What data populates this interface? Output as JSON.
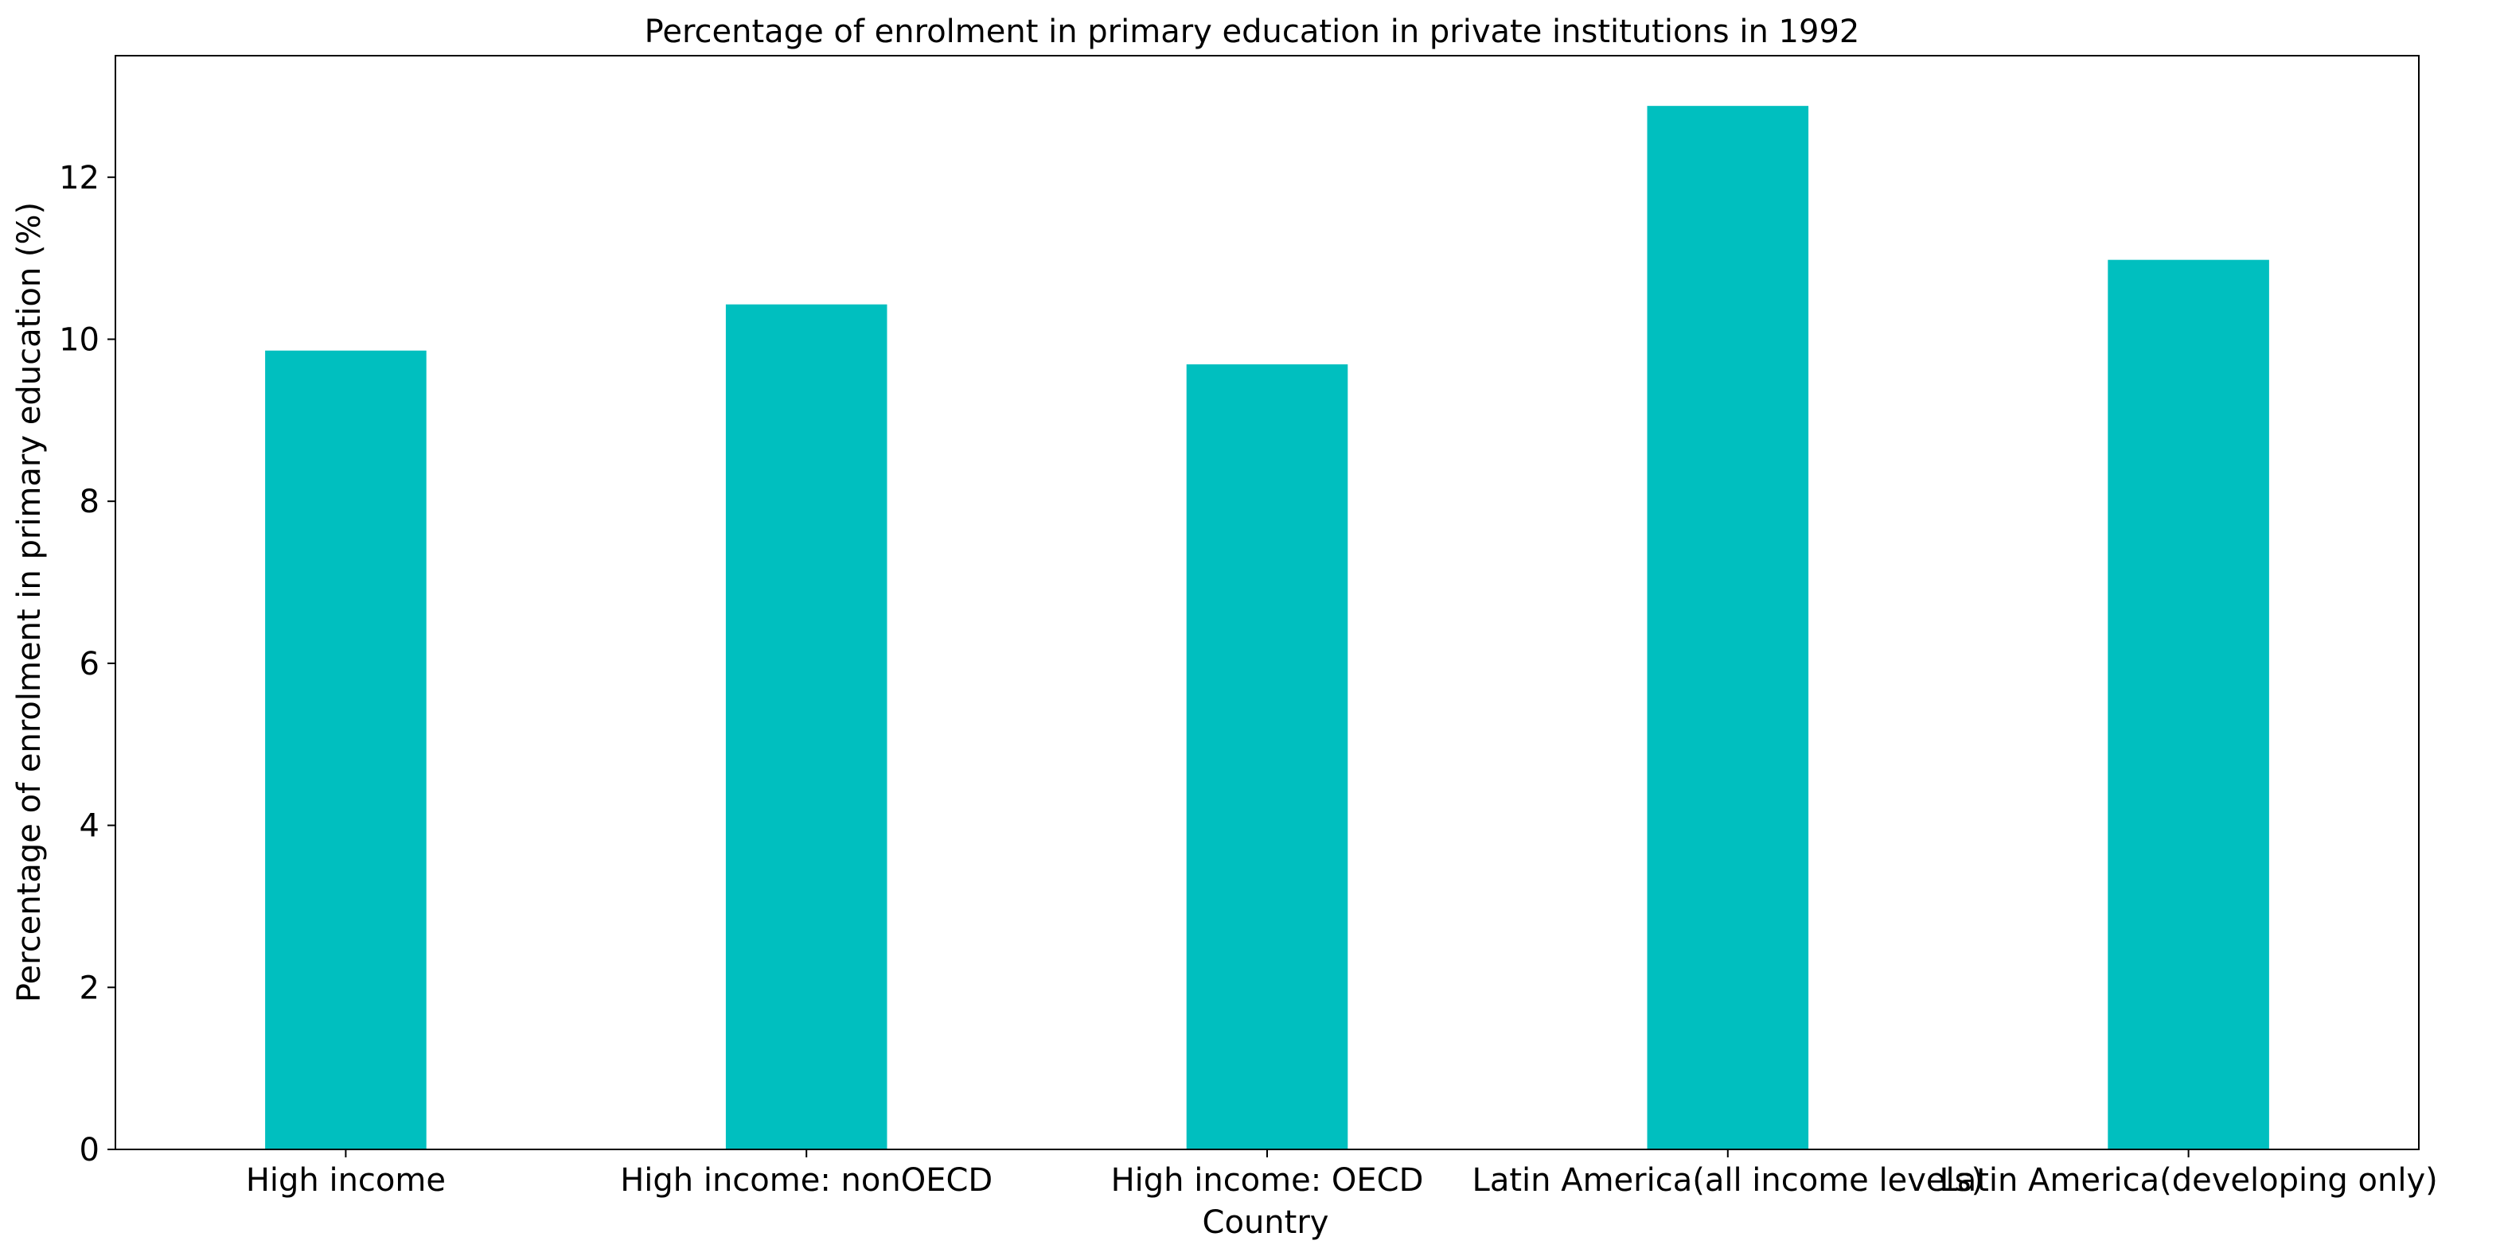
{
  "chart_data": {
    "type": "bar",
    "title": "Percentage of enrolment in primary education in private institutions in 1992",
    "xlabel": "Country",
    "ylabel": "Percentage of enrolment in primary education (%)",
    "categories": [
      "High income",
      "High income: nonOECD",
      "High income: OECD",
      "Latin America(all income levels)",
      "Latin America(developing only)"
    ],
    "values": [
      9.86,
      10.43,
      9.69,
      12.88,
      10.98
    ],
    "ylim": [
      0,
      13.5
    ],
    "yticks": [
      0,
      2,
      4,
      6,
      8,
      10,
      12
    ],
    "bar_color": "#00bfbf",
    "grid": false,
    "legend": "none"
  }
}
